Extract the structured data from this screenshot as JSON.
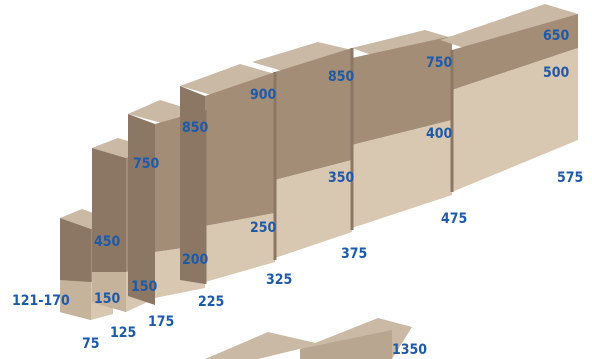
{
  "colors": {
    "top": "#c9b9a5",
    "front_dark": "#a38d77",
    "front_light": "#d8c8b2",
    "side": "#8c7764",
    "label": "#1f5aa8"
  },
  "blocks": [
    {
      "bottom_label": "75",
      "upper_value": "450",
      "lower_value": "150",
      "depth_label": "121-170"
    },
    {
      "bottom_label": "125",
      "upper_value": "750",
      "lower_value": "150"
    },
    {
      "bottom_label": "175",
      "upper_value": "850",
      "lower_value": "200"
    },
    {
      "bottom_label": "225",
      "upper_value": "900",
      "lower_value": "250"
    },
    {
      "bottom_label": "325",
      "upper_value": "850",
      "lower_value": "350"
    },
    {
      "bottom_label": "375",
      "upper_value": "750",
      "lower_value": "400"
    },
    {
      "bottom_label": "475",
      "upper_value": "650",
      "lower_value": "500"
    },
    {
      "bottom_label": "575"
    }
  ],
  "second_row_label": "1350"
}
